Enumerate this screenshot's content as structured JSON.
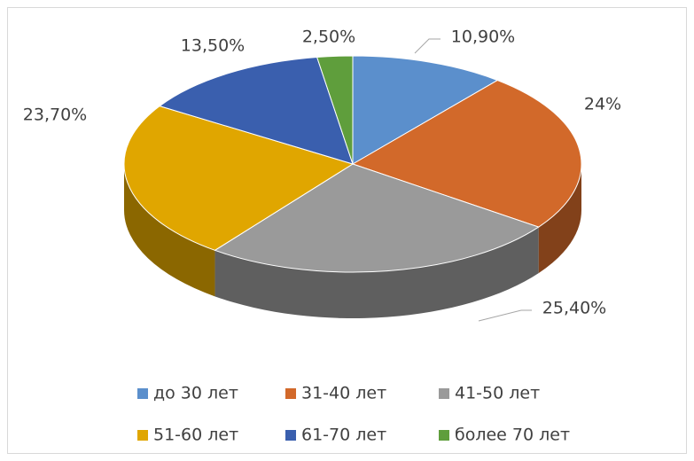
{
  "chart_data": {
    "type": "pie",
    "categories": [
      "до 30 лет",
      "31-40 лет",
      "41-50 лет",
      "51-60 лет",
      "61-70 лет",
      "более 70 лет"
    ],
    "values": [
      10.9,
      24,
      25.4,
      23.7,
      13.5,
      2.5
    ],
    "value_labels": [
      "10,90%",
      "24%",
      "25,40%",
      "23,70%",
      "13,50%",
      "2,50%"
    ],
    "colors": [
      "#5b8fcc",
      "#d2692a",
      "#9a9a9a",
      "#e0a600",
      "#3a5fae",
      "#5f9e3c"
    ],
    "legend": "bottom"
  }
}
